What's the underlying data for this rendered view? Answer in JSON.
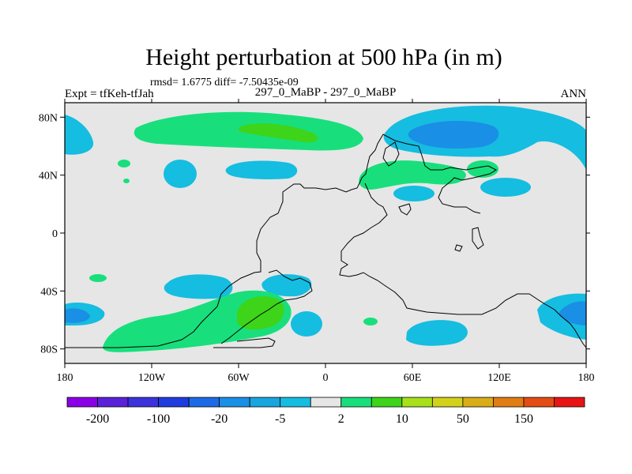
{
  "title": "Height perturbation at 500 hPa (in m)",
  "stats_line": "rmsd= 1.6775 diff= -7.50435e-09",
  "left_subtitle": "Expt = tfKeh-tfJah",
  "center_subtitle": "297_0_MaBP - 297_0_MaBP",
  "right_subtitle": "ANN",
  "chart_data": {
    "type": "heatmap",
    "x_ticks": [
      "180",
      "120W",
      "60W",
      "0",
      "60E",
      "120E",
      "180"
    ],
    "y_ticks": [
      "80N",
      "40N",
      "0",
      "40S",
      "80S"
    ],
    "xlim": [
      -180,
      180
    ],
    "ylim": [
      -90,
      90
    ],
    "colorbar_labels": [
      "-200",
      "-100",
      "-20",
      "-5",
      "2",
      "10",
      "50",
      "150"
    ],
    "colorbar_colors": [
      "#8a00e6",
      "#5a22d8",
      "#3c33dd",
      "#1f3cde",
      "#1d6ae6",
      "#1a8fe6",
      "#18a6de",
      "#15bde0",
      "#e6e6e6",
      "#18df7c",
      "#3dd41a",
      "#a8e01a",
      "#d3d21a",
      "#d9ad18",
      "#e07d14",
      "#e34c14",
      "#e61414"
    ],
    "colors": {
      "neutral": "#e6e6e6",
      "cyan": "#15bde0",
      "light_blue": "#1a8fe6",
      "light_green": "#18df7c",
      "green": "#3dd41a",
      "coast": "#000000"
    }
  }
}
